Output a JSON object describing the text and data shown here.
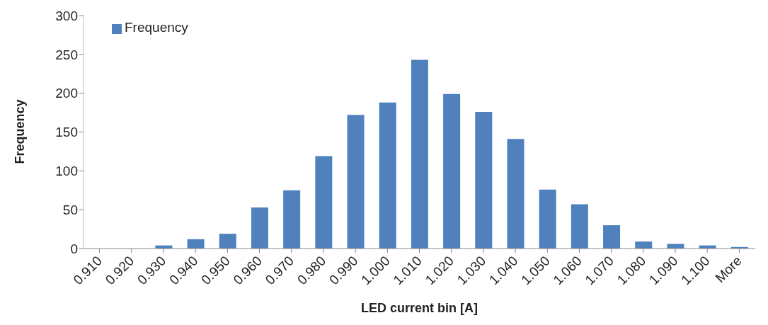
{
  "chart_data": {
    "type": "bar",
    "xlabel": "LED current bin [A]",
    "ylabel": "Frequency",
    "categories": [
      "0.910",
      "0.920",
      "0.930",
      "0.940",
      "0.950",
      "0.960",
      "0.970",
      "0.980",
      "0.990",
      "1.000",
      "1.010",
      "1.020",
      "1.030",
      "1.040",
      "1.050",
      "1.060",
      "1.070",
      "1.080",
      "1.090",
      "1.100",
      "More"
    ],
    "series": [
      {
        "name": "Frequency",
        "color": "#4f81bd",
        "values": [
          0,
          0,
          4,
          12,
          19,
          53,
          75,
          119,
          172,
          188,
          243,
          199,
          176,
          141,
          76,
          57,
          30,
          9,
          6,
          4,
          2
        ]
      }
    ],
    "ylim": [
      0,
      300
    ],
    "yticks": [
      0,
      50,
      100,
      150,
      200,
      250,
      300
    ],
    "grid": false,
    "legend": "top left"
  }
}
